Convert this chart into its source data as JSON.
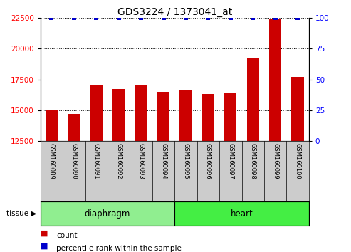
{
  "title": "GDS3224 / 1373041_at",
  "categories": [
    "GSM160089",
    "GSM160090",
    "GSM160091",
    "GSM160092",
    "GSM160093",
    "GSM160094",
    "GSM160095",
    "GSM160096",
    "GSM160097",
    "GSM160098",
    "GSM160099",
    "GSM160100"
  ],
  "counts": [
    15000,
    14700,
    17000,
    16700,
    17000,
    16500,
    16600,
    16300,
    16400,
    19200,
    22400,
    17700
  ],
  "percentiles": [
    100,
    100,
    100,
    100,
    100,
    100,
    100,
    100,
    100,
    100,
    100,
    100
  ],
  "bar_color": "#cc0000",
  "percentile_color": "#0000cc",
  "ylim_left": [
    12500,
    22500
  ],
  "ylim_right": [
    0,
    100
  ],
  "yticks_left": [
    12500,
    15000,
    17500,
    20000,
    22500
  ],
  "yticks_right": [
    0,
    25,
    50,
    75,
    100
  ],
  "grid_color": "black",
  "tissue_groups": [
    {
      "label": "diaphragm",
      "start": 0,
      "end": 6,
      "color": "#90ee90"
    },
    {
      "label": "heart",
      "start": 6,
      "end": 12,
      "color": "#44ee44"
    }
  ],
  "tissue_label": "tissue",
  "legend_items": [
    {
      "label": "count",
      "color": "#cc0000"
    },
    {
      "label": "percentile rank within the sample",
      "color": "#0000cc"
    }
  ],
  "bg_color": "#ffffff",
  "bar_width": 0.55,
  "label_area_color": "#cccccc"
}
